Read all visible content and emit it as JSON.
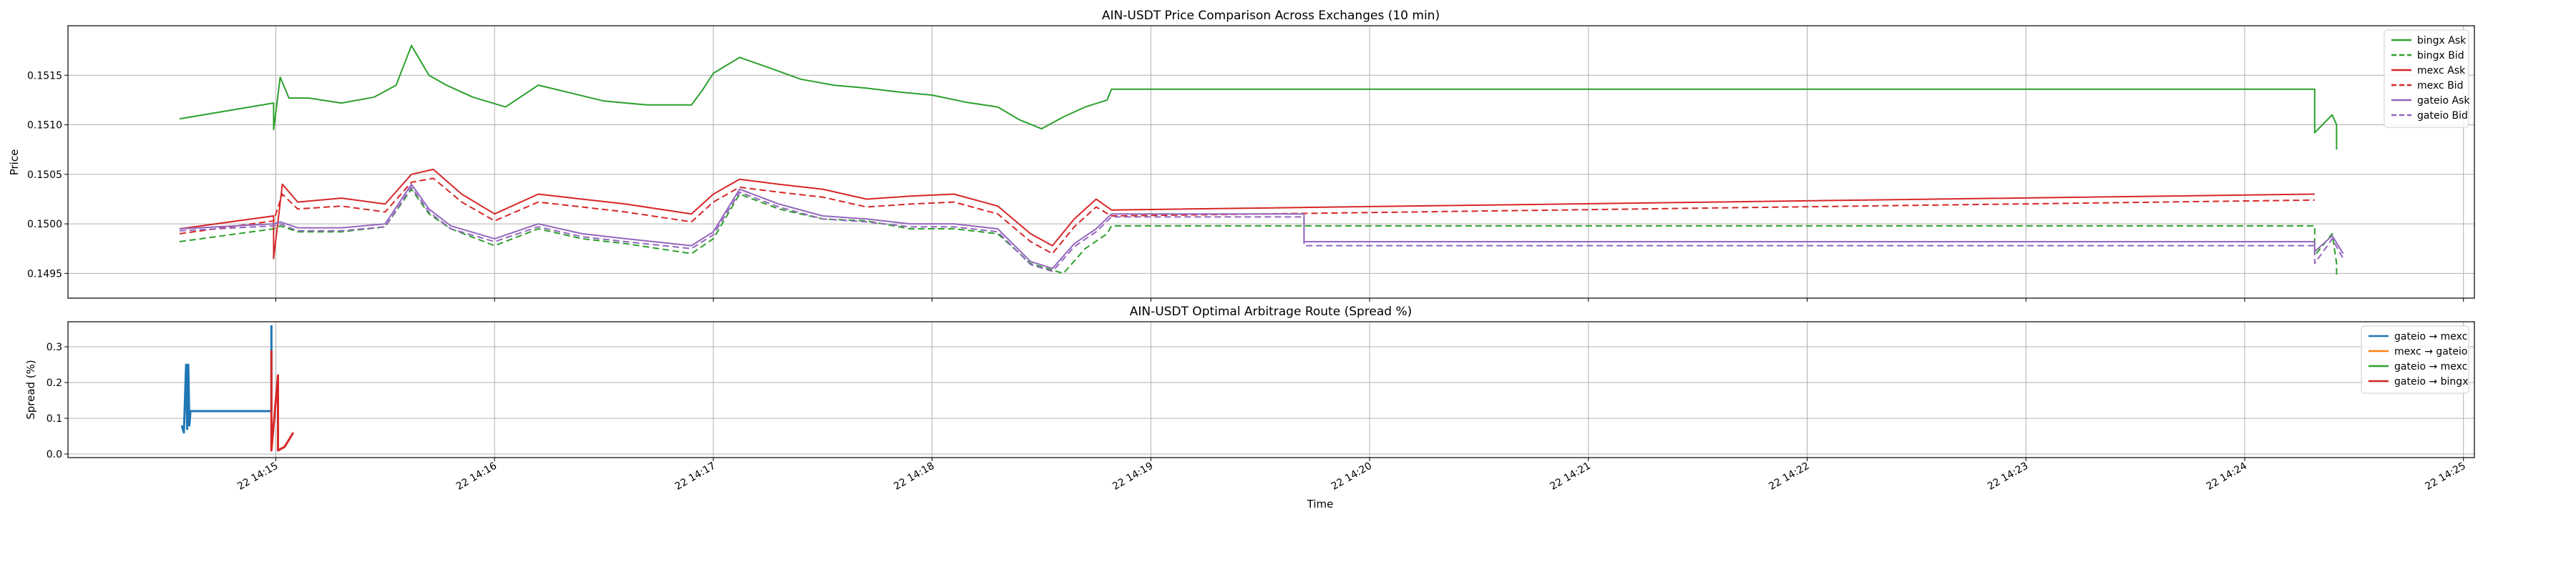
{
  "chart_data": [
    {
      "type": "line",
      "title": "AIN-USDT Price Comparison Across Exchanges (10 min)",
      "xlabel": "",
      "ylabel": "Price",
      "ylim": [
        0.14925,
        0.152
      ],
      "yticks": [
        0.1495,
        0.15,
        0.1505,
        0.151,
        0.1515
      ],
      "ytick_labels": [
        "0.1495",
        "0.1500",
        "0.1505",
        "0.1510",
        "0.1515"
      ],
      "grid": true,
      "legend_placement": "upper-right",
      "x_unit": "minutes after 22 14:15",
      "series": [
        {
          "name": "bingx Ask",
          "color": "#2ca02c",
          "dash": "solid",
          "x": [
            -0.44,
            -0.01,
            -0.01,
            0.02,
            0.06,
            0.15,
            0.3,
            0.45,
            0.55,
            0.62,
            0.7,
            0.78,
            0.9,
            1.05,
            1.2,
            1.35,
            1.5,
            1.7,
            1.9,
            1.95,
            2.0,
            2.12,
            2.25,
            2.4,
            2.55,
            2.7,
            2.85,
            3.0,
            3.15,
            3.3,
            3.4,
            3.5,
            3.6,
            3.7,
            3.8,
            3.82,
            9.32,
            9.32,
            9.4,
            9.42,
            9.42
          ],
          "y": [
            0.15106,
            0.15122,
            0.15095,
            0.15148,
            0.15127,
            0.15127,
            0.15122,
            0.15128,
            0.1514,
            0.1518,
            0.1515,
            0.1514,
            0.15128,
            0.15118,
            0.1514,
            0.15132,
            0.15124,
            0.1512,
            0.1512,
            0.15135,
            0.15152,
            0.15168,
            0.15158,
            0.15146,
            0.1514,
            0.15137,
            0.15133,
            0.1513,
            0.15123,
            0.15118,
            0.15105,
            0.15096,
            0.15108,
            0.15118,
            0.15125,
            0.15136,
            0.15136,
            0.15092,
            0.1511,
            0.151,
            0.15075
          ]
        },
        {
          "name": "bingx Bid",
          "color": "#2ca02c",
          "dash": "dashed",
          "x": [
            -0.44,
            -0.01,
            0.02,
            0.1,
            0.3,
            0.5,
            0.62,
            0.7,
            0.8,
            1.0,
            1.2,
            1.4,
            1.6,
            1.9,
            2.0,
            2.12,
            2.3,
            2.5,
            2.7,
            2.9,
            3.1,
            3.3,
            3.45,
            3.6,
            3.7,
            3.8,
            3.82,
            9.32,
            9.32,
            9.4,
            9.42,
            9.42
          ],
          "y": [
            0.14982,
            0.14995,
            0.14998,
            0.14992,
            0.14992,
            0.14997,
            0.15035,
            0.1501,
            0.14995,
            0.14978,
            0.14995,
            0.14985,
            0.1498,
            0.1497,
            0.14985,
            0.1503,
            0.15015,
            0.15005,
            0.15003,
            0.14995,
            0.14995,
            0.1499,
            0.1496,
            0.1495,
            0.14975,
            0.1499,
            0.14998,
            0.14998,
            0.14968,
            0.1499,
            0.1496,
            0.14945
          ]
        },
        {
          "name": "mexc Ask",
          "color": "#d62728",
          "dash": "solid",
          "x": [
            -0.44,
            -0.01,
            -0.01,
            0.03,
            0.1,
            0.3,
            0.5,
            0.62,
            0.72,
            0.85,
            1.0,
            1.2,
            1.4,
            1.6,
            1.9,
            2.0,
            2.12,
            2.3,
            2.5,
            2.7,
            2.9,
            3.1,
            3.3,
            3.45,
            3.55,
            3.65,
            3.75,
            3.82,
            9.32
          ],
          "y": [
            0.14995,
            0.15008,
            0.14965,
            0.1504,
            0.15022,
            0.15026,
            0.1502,
            0.1505,
            0.15055,
            0.1503,
            0.1501,
            0.1503,
            0.15025,
            0.1502,
            0.1501,
            0.1503,
            0.15045,
            0.1504,
            0.15035,
            0.15025,
            0.15028,
            0.1503,
            0.15018,
            0.1499,
            0.14978,
            0.15005,
            0.15025,
            0.15014,
            0.1503
          ]
        },
        {
          "name": "mexc Bid",
          "color": "#d62728",
          "dash": "dashed",
          "x": [
            -0.44,
            -0.01,
            0.03,
            0.1,
            0.3,
            0.5,
            0.62,
            0.72,
            0.85,
            1.0,
            1.2,
            1.4,
            1.6,
            1.9,
            2.0,
            2.12,
            2.3,
            2.5,
            2.7,
            2.9,
            3.1,
            3.3,
            3.45,
            3.55,
            3.65,
            3.75,
            3.82,
            9.32
          ],
          "y": [
            0.1499,
            0.15003,
            0.1503,
            0.15015,
            0.15018,
            0.15012,
            0.15042,
            0.15046,
            0.15022,
            0.15003,
            0.15022,
            0.15017,
            0.15012,
            0.15002,
            0.15022,
            0.15037,
            0.15032,
            0.15027,
            0.15017,
            0.1502,
            0.15022,
            0.1501,
            0.14982,
            0.1497,
            0.14997,
            0.15017,
            0.15008,
            0.15024
          ]
        },
        {
          "name": "gateio Ask",
          "color": "#9467bd",
          "dash": "solid",
          "x": [
            -0.44,
            -0.01,
            0.02,
            0.1,
            0.3,
            0.5,
            0.62,
            0.7,
            0.8,
            1.0,
            1.2,
            1.4,
            1.6,
            1.9,
            2.0,
            2.12,
            2.3,
            2.5,
            2.7,
            2.9,
            3.1,
            3.3,
            3.45,
            3.55,
            3.65,
            3.75,
            3.82,
            4.7,
            4.7,
            9.32,
            9.32,
            9.4,
            9.45
          ],
          "y": [
            0.14995,
            0.15,
            0.15002,
            0.14996,
            0.14996,
            0.15,
            0.1504,
            0.15015,
            0.14998,
            0.14985,
            0.15,
            0.1499,
            0.14985,
            0.14978,
            0.14992,
            0.15035,
            0.1502,
            0.15008,
            0.15005,
            0.15,
            0.15,
            0.14995,
            0.14962,
            0.14955,
            0.1498,
            0.14995,
            0.1501,
            0.1501,
            0.14982,
            0.14982,
            0.14972,
            0.14988,
            0.1497
          ]
        },
        {
          "name": "gateio Bid",
          "color": "#9467bd",
          "dash": "dashed",
          "x": [
            -0.44,
            -0.01,
            0.02,
            0.1,
            0.3,
            0.5,
            0.62,
            0.7,
            0.8,
            1.0,
            1.2,
            1.4,
            1.6,
            1.9,
            2.0,
            2.12,
            2.3,
            2.5,
            2.7,
            2.9,
            3.1,
            3.3,
            3.45,
            3.55,
            3.65,
            3.75,
            3.82,
            4.7,
            4.7,
            9.32,
            9.32,
            9.4,
            9.45
          ],
          "y": [
            0.14993,
            0.14998,
            0.15,
            0.14993,
            0.14993,
            0.14997,
            0.15037,
            0.15012,
            0.14995,
            0.14982,
            0.14997,
            0.14987,
            0.14982,
            0.14975,
            0.14989,
            0.15032,
            0.15017,
            0.15005,
            0.15002,
            0.14997,
            0.14997,
            0.14992,
            0.14959,
            0.14952,
            0.14977,
            0.14992,
            0.15007,
            0.15007,
            0.14978,
            0.14978,
            0.1496,
            0.14985,
            0.14965
          ]
        }
      ]
    },
    {
      "type": "line",
      "title": "AIN-USDT Optimal Arbitrage Route (Spread %)",
      "xlabel": "Time",
      "ylabel": "Spread (%)",
      "ylim": [
        -0.01,
        0.37
      ],
      "yticks": [
        0.0,
        0.1,
        0.2,
        0.3
      ],
      "ytick_labels": [
        "0.0",
        "0.1",
        "0.2",
        "0.3"
      ],
      "x_tick_values": [
        0,
        1,
        2,
        3,
        4,
        5,
        6,
        7,
        8,
        9,
        10
      ],
      "x_tick_labels": [
        "22 14:15",
        "22 14:16",
        "22 14:17",
        "22 14:18",
        "22 14:19",
        "22 14:20",
        "22 14:21",
        "22 14:22",
        "22 14:23",
        "22 14:24",
        "22 14:25"
      ],
      "xlim": [
        -0.95,
        10.05
      ],
      "grid": true,
      "legend_placement": "upper-right",
      "series": [
        {
          "name": "gateio → mexc",
          "color": "#1f77b4",
          "x": [
            -0.43,
            -0.42,
            -0.41,
            -0.405,
            -0.4,
            -0.395,
            -0.39,
            -0.38,
            -0.37,
            -0.02,
            -0.02
          ],
          "y": [
            0.08,
            0.06,
            0.25,
            0.07,
            0.25,
            0.08,
            0.12,
            0.12,
            0.12,
            0.12,
            0.36
          ]
        },
        {
          "name": "mexc → gateio",
          "color": "#ff7f0e",
          "x": [],
          "y": []
        },
        {
          "name": "gateio → mexc",
          "color": "#2ca02c",
          "x": [],
          "y": []
        },
        {
          "name": "gateio → bingx",
          "color": "#d62728",
          "x": [
            -0.02,
            -0.02,
            0.01,
            0.01,
            0.04,
            0.06,
            0.08
          ],
          "y": [
            0.29,
            0.01,
            0.22,
            0.01,
            0.02,
            0.04,
            0.06
          ]
        }
      ]
    }
  ]
}
